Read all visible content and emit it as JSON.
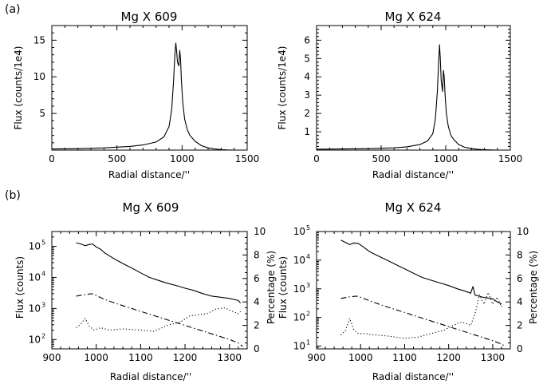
{
  "panel_labels": [
    "(a)",
    "(b)"
  ],
  "chart_data": [
    {
      "id": "a1",
      "type": "line",
      "title": "Mg X 609",
      "xlabel": "Radial distance/''",
      "ylabel": "Flux (counts/1e4)",
      "xlim": [
        0,
        1500
      ],
      "ylim": [
        0,
        17
      ],
      "xticks": [
        0,
        500,
        1000,
        1500
      ],
      "yticks": [
        5,
        10,
        15
      ],
      "series": [
        {
          "style": "solid",
          "x": [
            0,
            200,
            400,
            600,
            700,
            800,
            860,
            900,
            920,
            935,
            945,
            952,
            958,
            965,
            975,
            982,
            988,
            995,
            1005,
            1020,
            1040,
            1060,
            1080,
            1100,
            1150,
            1200,
            1250,
            1300,
            1350,
            1400
          ],
          "y": [
            0.15,
            0.2,
            0.3,
            0.5,
            0.7,
            1.1,
            1.8,
            3.2,
            5.5,
            9.5,
            13.0,
            14.6,
            13.5,
            12.0,
            11.5,
            13.6,
            12.5,
            9.5,
            6.5,
            4.2,
            2.8,
            2.0,
            1.6,
            1.2,
            0.6,
            0.3,
            0.15,
            0.06,
            0.02,
            0.0
          ]
        }
      ]
    },
    {
      "id": "a2",
      "type": "line",
      "title": "Mg X 624",
      "xlabel": "Radial distance/''",
      "ylabel": "Flux (counts/1e4)",
      "xlim": [
        0,
        1500
      ],
      "ylim": [
        0,
        6.8
      ],
      "xticks": [
        0,
        500,
        1000,
        1500
      ],
      "yticks": [
        1,
        2,
        3,
        4,
        5,
        6
      ],
      "series": [
        {
          "style": "solid",
          "x": [
            0,
            200,
            400,
            600,
            700,
            800,
            860,
            900,
            920,
            935,
            945,
            952,
            958,
            965,
            975,
            982,
            988,
            995,
            1005,
            1020,
            1040,
            1060,
            1080,
            1100,
            1150,
            1200,
            1250,
            1300,
            1350,
            1400
          ],
          "y": [
            0.05,
            0.06,
            0.08,
            0.12,
            0.18,
            0.3,
            0.5,
            0.9,
            1.7,
            3.2,
            4.8,
            5.75,
            5.0,
            3.8,
            3.2,
            4.35,
            4.0,
            3.0,
            2.0,
            1.3,
            0.8,
            0.6,
            0.45,
            0.3,
            0.15,
            0.08,
            0.04,
            0.02,
            0.01,
            0.0
          ]
        }
      ]
    },
    {
      "id": "b1",
      "type": "line",
      "title": "Mg X 609",
      "xlabel": "Radial distance/''",
      "ylabel": "Flux (counts)",
      "y2label": "Percentage (%)",
      "xlim": [
        900,
        1340
      ],
      "ylim": [
        50,
        300000
      ],
      "yscale": "log",
      "y2lim": [
        0,
        10
      ],
      "xticks": [
        900,
        1000,
        1100,
        1200,
        1300
      ],
      "ydecades": [
        2,
        3,
        4,
        5
      ],
      "y2ticks": [
        0,
        2,
        4,
        6,
        8,
        10
      ],
      "series": [
        {
          "style": "solid",
          "axis": "left",
          "x": [
            955,
            965,
            975,
            985,
            992,
            1000,
            1010,
            1020,
            1040,
            1060,
            1080,
            1100,
            1120,
            1140,
            1160,
            1180,
            1200,
            1220,
            1240,
            1260,
            1280,
            1300,
            1320,
            1325
          ],
          "y": [
            130000,
            120000,
            105000,
            115000,
            120000,
            95000,
            80000,
            60000,
            40000,
            28000,
            20000,
            14000,
            10000,
            8000,
            6500,
            5500,
            4500,
            3800,
            3000,
            2500,
            2300,
            2100,
            1800,
            1500
          ]
        },
        {
          "style": "dashdot",
          "axis": "right",
          "x": [
            955,
            970,
            990,
            1000,
            1020,
            1050,
            1100,
            1150,
            1200,
            1250,
            1300,
            1320,
            1330
          ],
          "y": [
            4.5,
            4.6,
            4.7,
            4.55,
            4.2,
            3.8,
            3.2,
            2.6,
            2.0,
            1.4,
            0.8,
            0.5,
            0.2
          ]
        },
        {
          "style": "dotted",
          "axis": "right",
          "x": [
            955,
            965,
            975,
            985,
            995,
            1010,
            1030,
            1060,
            1100,
            1130,
            1160,
            1190,
            1210,
            1230,
            1250,
            1270,
            1290,
            1300,
            1320,
            1325
          ],
          "y": [
            1.8,
            2.1,
            2.6,
            1.9,
            1.6,
            1.8,
            1.6,
            1.7,
            1.6,
            1.5,
            2.0,
            2.3,
            2.8,
            2.9,
            3.0,
            3.4,
            3.5,
            3.3,
            3.0,
            3.2
          ]
        }
      ]
    },
    {
      "id": "b2",
      "type": "line",
      "title": "Mg X 624",
      "xlabel": "Radial distance/''",
      "ylabel": "Flux (counts)",
      "y2label": "Percentage (%)",
      "xlim": [
        900,
        1340
      ],
      "ylim": [
        8,
        100000
      ],
      "yscale": "log",
      "y2lim": [
        0,
        10
      ],
      "xticks": [
        900,
        1000,
        1100,
        1200,
        1300
      ],
      "ydecades": [
        1,
        2,
        3,
        4,
        5
      ],
      "y2ticks": [
        0,
        2,
        4,
        6,
        8,
        10
      ],
      "series": [
        {
          "style": "solid",
          "axis": "left",
          "x": [
            955,
            965,
            975,
            985,
            995,
            1005,
            1020,
            1040,
            1060,
            1080,
            1100,
            1120,
            1140,
            1160,
            1180,
            1200,
            1220,
            1240,
            1250,
            1255,
            1260,
            1280,
            1300,
            1310,
            1320
          ],
          "y": [
            50000,
            42000,
            35000,
            40000,
            38000,
            30000,
            20000,
            14000,
            10000,
            7000,
            5000,
            3500,
            2500,
            2000,
            1600,
            1300,
            1000,
            800,
            700,
            1200,
            600,
            500,
            450,
            350,
            300
          ]
        },
        {
          "style": "dashdot",
          "axis": "right",
          "x": [
            955,
            970,
            990,
            1000,
            1020,
            1050,
            1100,
            1150,
            1200,
            1250,
            1300,
            1320,
            1330
          ],
          "y": [
            4.3,
            4.4,
            4.5,
            4.4,
            4.1,
            3.7,
            3.1,
            2.5,
            1.9,
            1.3,
            0.7,
            0.4,
            0.2
          ]
        },
        {
          "style": "dotted",
          "axis": "right",
          "x": [
            955,
            965,
            975,
            985,
            995,
            1010,
            1030,
            1060,
            1100,
            1130,
            1160,
            1190,
            1210,
            1230,
            1250,
            1260,
            1270,
            1280,
            1290,
            1300,
            1310,
            1320,
            1325
          ],
          "y": [
            1.2,
            1.5,
            2.6,
            1.6,
            1.3,
            1.3,
            1.2,
            1.1,
            0.9,
            1.0,
            1.3,
            1.6,
            2.0,
            2.3,
            2.0,
            3.0,
            4.6,
            3.8,
            4.8,
            3.8,
            4.4,
            3.6,
            3.8
          ]
        }
      ]
    }
  ]
}
